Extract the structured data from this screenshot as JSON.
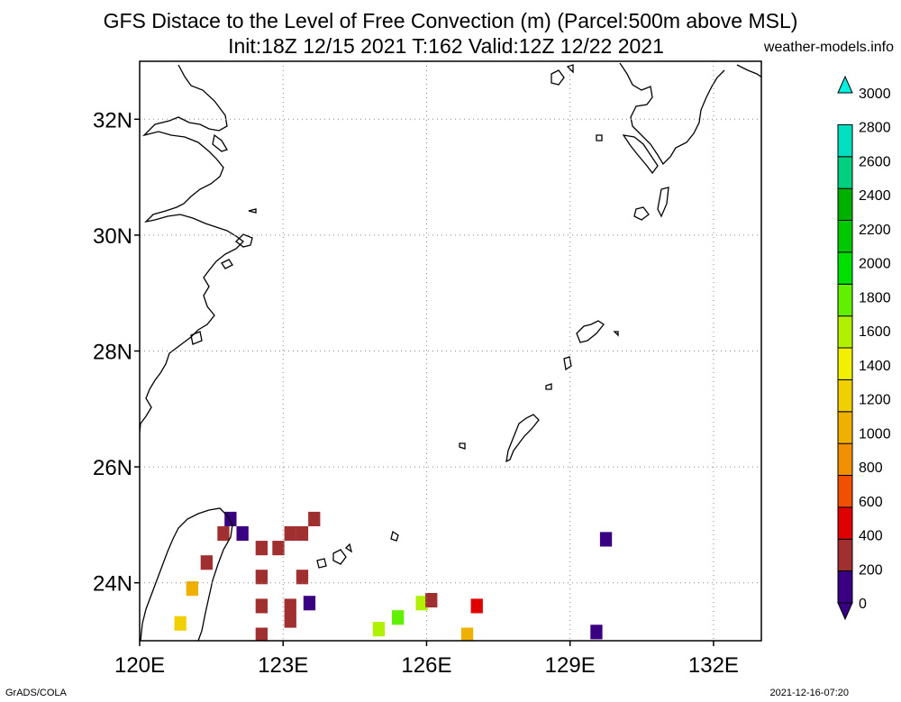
{
  "header": {
    "title_line1": "GFS Distace to the Level of Free Convection (m) (Parcel:500m above MSL)",
    "title_line2": "Init:18Z 12/15 2021 T:162 Valid:12Z 12/22 2021",
    "credit": "weather-models.info"
  },
  "footer": {
    "left": "GrADS/COLA",
    "right": "2021-12-16-07:20"
  },
  "map": {
    "lon_labels": [
      "120E",
      "123E",
      "126E",
      "129E",
      "132E"
    ],
    "lat_labels": [
      "24N",
      "26N",
      "28N",
      "30N",
      "32N"
    ],
    "lon_range": [
      120,
      133
    ],
    "lat_range": [
      23,
      33
    ],
    "grid": "dotted"
  },
  "colorbar": {
    "ticks": [
      "0",
      "200",
      "400",
      "600",
      "800",
      "1000",
      "1200",
      "1400",
      "1600",
      "1800",
      "2000",
      "2200",
      "2400",
      "2600",
      "2800",
      "3000"
    ],
    "colors": [
      "#3a0082",
      "#ff00ff",
      "#a03030",
      "#e00000",
      "#f05000",
      "#f09000",
      "#f0b000",
      "#f0d000",
      "#f0f000",
      "#b0f000",
      "#60f000",
      "#00e000",
      "#00c800",
      "#00b000",
      "#00d080",
      "#00e0c0",
      "#00f0e0"
    ]
  },
  "chart_data": {
    "type": "heatmap",
    "title": "GFS Distace to the Level of Free Convection (m) (Parcel:500m above MSL)",
    "subtitle": "Init:18Z 12/15 2021 T:162 Valid:12Z 12/22 2021",
    "units": "m",
    "x_axis": "longitude",
    "y_axis": "latitude",
    "xlim": [
      120,
      133
    ],
    "ylim": [
      23,
      33
    ],
    "cells": [
      {
        "lon": 121.9,
        "lat": 25.1,
        "value": 0
      },
      {
        "lon": 122.15,
        "lat": 24.85,
        "value": 0
      },
      {
        "lon": 121.75,
        "lat": 24.85,
        "value": 200
      },
      {
        "lon": 122.55,
        "lat": 24.6,
        "value": 200
      },
      {
        "lon": 122.9,
        "lat": 24.6,
        "value": 200
      },
      {
        "lon": 123.15,
        "lat": 24.85,
        "value": 200
      },
      {
        "lon": 123.65,
        "lat": 25.1,
        "value": 200
      },
      {
        "lon": 123.4,
        "lat": 24.85,
        "value": 200
      },
      {
        "lon": 122.55,
        "lat": 24.1,
        "value": 200
      },
      {
        "lon": 122.55,
        "lat": 23.6,
        "value": 200
      },
      {
        "lon": 122.55,
        "lat": 23.1,
        "value": 200
      },
      {
        "lon": 123.15,
        "lat": 23.35,
        "value": 200
      },
      {
        "lon": 123.15,
        "lat": 23.6,
        "value": 200
      },
      {
        "lon": 123.4,
        "lat": 24.1,
        "value": 200
      },
      {
        "lon": 123.55,
        "lat": 23.65,
        "value": 0
      },
      {
        "lon": 121.4,
        "lat": 24.35,
        "value": 200
      },
      {
        "lon": 121.1,
        "lat": 23.9,
        "value": 1000
      },
      {
        "lon": 120.85,
        "lat": 23.3,
        "value": 1200
      },
      {
        "lon": 125.0,
        "lat": 23.2,
        "value": 1600
      },
      {
        "lon": 125.4,
        "lat": 23.4,
        "value": 1800
      },
      {
        "lon": 125.9,
        "lat": 23.65,
        "value": 1600
      },
      {
        "lon": 126.1,
        "lat": 23.7,
        "value": 200
      },
      {
        "lon": 127.05,
        "lat": 23.6,
        "value": 400
      },
      {
        "lon": 126.85,
        "lat": 23.1,
        "value": 1000
      },
      {
        "lon": 129.75,
        "lat": 24.75,
        "value": 0
      },
      {
        "lon": 129.55,
        "lat": 23.15,
        "value": 0
      }
    ]
  }
}
